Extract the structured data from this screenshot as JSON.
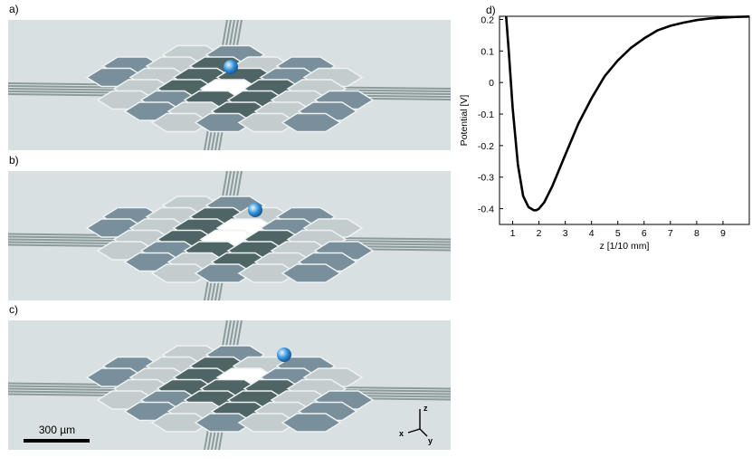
{
  "panels": {
    "a": {
      "label": "a)"
    },
    "b": {
      "label": "b)"
    },
    "c": {
      "label": "c)"
    },
    "d": {
      "label": "d)"
    }
  },
  "scale_bar": {
    "label": "300 µm"
  },
  "axes_triad": {
    "x": "x",
    "y": "y",
    "z": "z"
  },
  "colors": {
    "background": "#d9e0e1",
    "dark_pad": "#4f6465",
    "mid_pad": "#7a8f9c",
    "light_pad": "#c3cdce",
    "hole": "#ffffff",
    "particle": "#2f8fd8",
    "curve": "#000000"
  },
  "chart_data": {
    "type": "line",
    "title": "",
    "xlabel": "z [1/10 mm]",
    "ylabel": "Potential [V]",
    "xlim": [
      0.5,
      10
    ],
    "ylim": [
      -0.45,
      0.21
    ],
    "xticks": [
      1,
      2,
      3,
      4,
      5,
      6,
      7,
      8,
      9
    ],
    "yticks": [
      -0.4,
      -0.3,
      -0.2,
      -0.1,
      0,
      0.1,
      0.2
    ],
    "ytick_labels": [
      "-0.4",
      "-0.3",
      "-0.2",
      "-0.1",
      "0",
      "0.1",
      "0.2"
    ],
    "grid": false,
    "series": [
      {
        "x": [
          0.75,
          0.85,
          1.0,
          1.2,
          1.4,
          1.6,
          1.8,
          1.9,
          2.0,
          2.2,
          2.5,
          3.0,
          3.5,
          4.0,
          4.5,
          5.0,
          5.5,
          6.0,
          6.5,
          7.0,
          7.5,
          8.0,
          8.5,
          9.0,
          9.5,
          10.0
        ],
        "y": [
          0.21,
          0.1,
          -0.08,
          -0.26,
          -0.36,
          -0.395,
          -0.405,
          -0.405,
          -0.4,
          -0.38,
          -0.33,
          -0.23,
          -0.13,
          -0.05,
          0.02,
          0.07,
          0.11,
          0.14,
          0.165,
          0.18,
          0.19,
          0.198,
          0.203,
          0.206,
          0.208,
          0.209
        ]
      }
    ]
  }
}
